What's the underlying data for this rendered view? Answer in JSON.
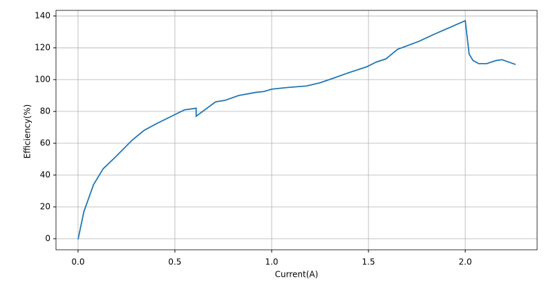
{
  "chart_data": {
    "type": "line",
    "xlabel": "Current(A)",
    "ylabel": "Efficiency(%)",
    "x": [
      0,
      0.03,
      0.08,
      0.13,
      0.19,
      0.28,
      0.34,
      0.4,
      0.5,
      0.55,
      0.61,
      0.61,
      0.71,
      0.76,
      0.83,
      0.92,
      0.96,
      1.0,
      1.08,
      1.18,
      1.25,
      1.31,
      1.39,
      1.49,
      1.54,
      1.59,
      1.65,
      1.76,
      1.83,
      2.0,
      2.02,
      2.04,
      2.07,
      2.11,
      2.16,
      2.19,
      2.26
    ],
    "series": [
      {
        "color": "#1f77b4",
        "values": [
          -0.4,
          17,
          34,
          44,
          51,
          62,
          68,
          72,
          78,
          81,
          82,
          77,
          86,
          87,
          90,
          92,
          92.5,
          94,
          95,
          96,
          98,
          100.5,
          104,
          108,
          111,
          113,
          119,
          124,
          128,
          137,
          116,
          112,
          110,
          110,
          112,
          112.5,
          109.5
        ]
      }
    ],
    "xlim": [
      -0.114,
      2.371
    ],
    "ylim": [
      -6.96,
      143.5
    ],
    "xticks": [
      {
        "value": 0,
        "label": "0.0"
      },
      0.5,
      {
        "value": 1,
        "label": "1.0"
      },
      1.5,
      {
        "value": 2,
        "label": "2.0"
      }
    ],
    "yticks": [
      0,
      20,
      40,
      60,
      80,
      100,
      120,
      140
    ],
    "grid": true
  }
}
